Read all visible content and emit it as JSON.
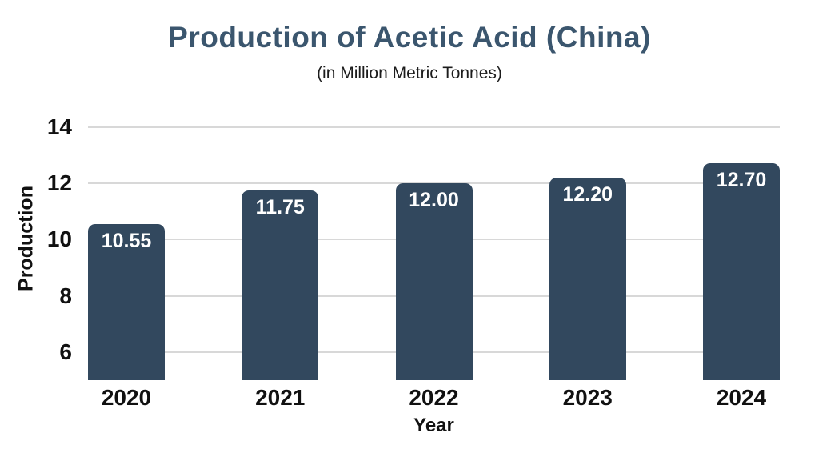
{
  "page": {
    "background_color": "#ffffff"
  },
  "chart_data": {
    "type": "bar",
    "title": "Production of Acetic Acid (China)",
    "subtitle": "(in Million Metric Tonnes)",
    "categories": [
      "2020",
      "2021",
      "2022",
      "2023",
      "2024"
    ],
    "values": [
      10.55,
      11.75,
      12.0,
      12.2,
      12.7
    ],
    "value_labels": [
      "10.55",
      "11.75",
      "12.00",
      "12.20",
      "12.70"
    ],
    "xlabel": "Year",
    "ylabel": "Production",
    "yticks": [
      6,
      8,
      10,
      12,
      14
    ],
    "ylim": [
      5,
      14.42
    ],
    "grid": true,
    "legend": "none",
    "colors": {
      "bar_fill": "#32485e",
      "bar_value_text": "#ffffff",
      "title_text": "#3b566e",
      "axis_text": "#111111",
      "gridline": "#d8d8d8"
    }
  }
}
